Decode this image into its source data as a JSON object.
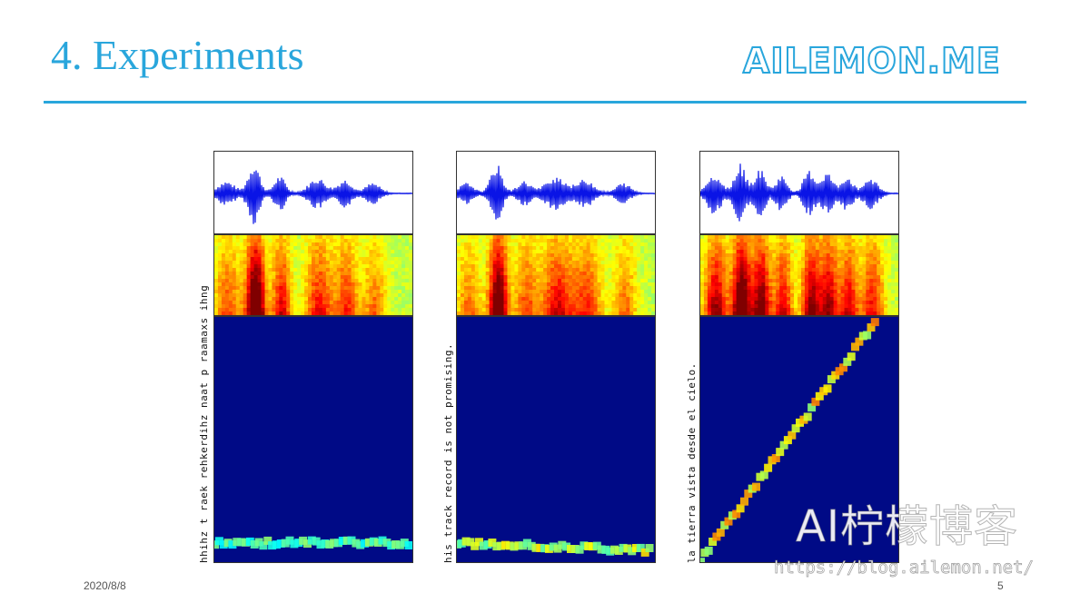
{
  "slide": {
    "title": "4. Experiments",
    "brand": "AILEMON.ME",
    "date": "2020/8/8",
    "page_number": "5"
  },
  "watermark": {
    "chinese": "AI柠檬博客",
    "url": "https://blog.ailemon.net/"
  },
  "figure": {
    "panels": [
      {
        "transcript": "hhihz t raek rehkerdihz naat p raamaxs ihng",
        "alignment_spread": "diffuse"
      },
      {
        "transcript": "his track record is not promising.",
        "alignment_spread": "medium"
      },
      {
        "transcript": "la tierra vista desde el cielo.",
        "alignment_spread": "sharp"
      }
    ],
    "colors": {
      "waveform": "#0a14e6",
      "alignment_background": "#000a86",
      "spectrogram_low": "#4ad8d4",
      "spectrogram_high": "#c81e00"
    }
  }
}
